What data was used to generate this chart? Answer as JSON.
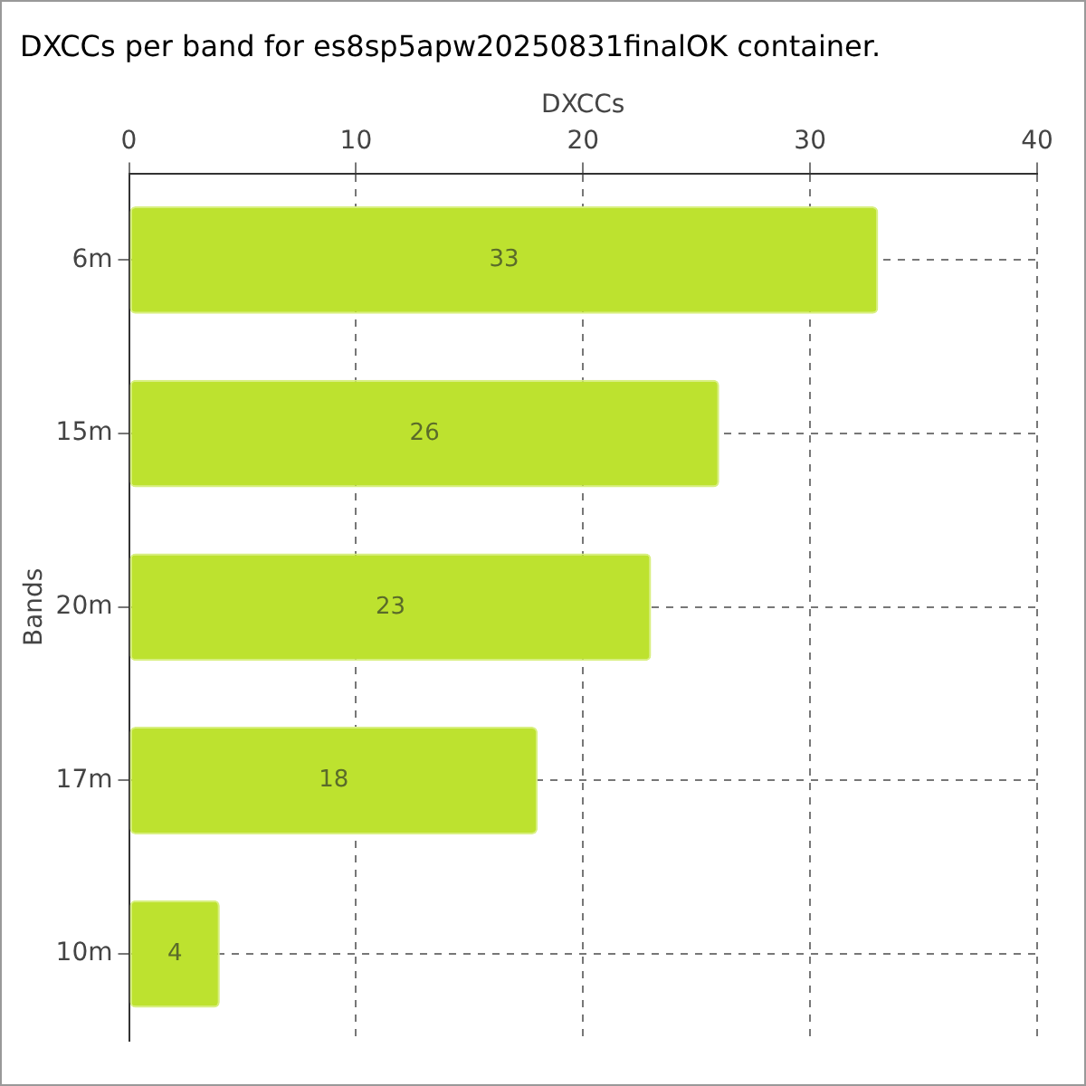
{
  "chart_data": {
    "type": "bar",
    "orientation": "horizontal",
    "title": "DXCCs per band for es8sp5apw20250831finalOK container.",
    "xlabel": "DXCCs",
    "ylabel": "Bands",
    "categories": [
      "6m",
      "15m",
      "20m",
      "17m",
      "10m"
    ],
    "values": [
      33,
      26,
      23,
      18,
      4
    ],
    "color": "#bde22f",
    "xlim": [
      0,
      40
    ],
    "xticks": [
      0,
      10,
      20,
      30,
      40
    ],
    "grid": true,
    "data_labels": true
  }
}
